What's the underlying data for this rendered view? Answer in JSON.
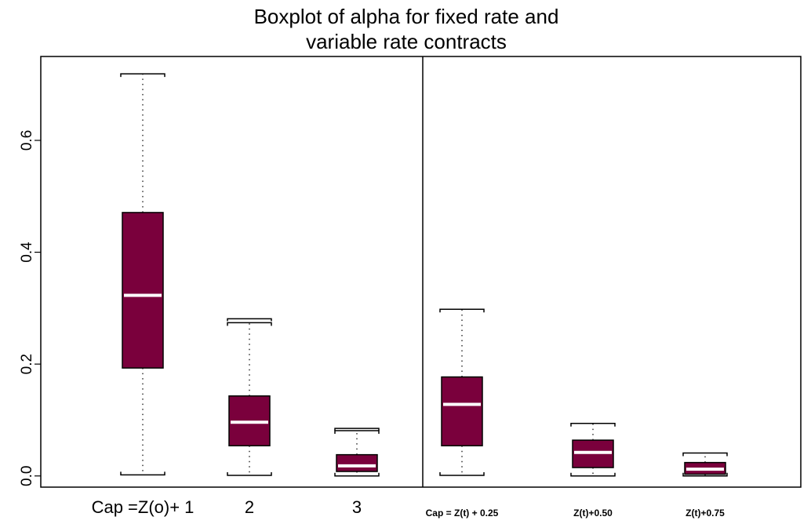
{
  "chart_data": {
    "type": "boxplot",
    "title": [
      "Boxplot of alpha for fixed rate and",
      "variable rate contracts"
    ],
    "xlabel": "",
    "ylabel": "",
    "ylim": [
      -0.02,
      0.75
    ],
    "yticks": [
      "0.0",
      "0.2",
      "0.4",
      "0.6"
    ],
    "ytick_values": [
      0.0,
      0.2,
      0.4,
      0.6
    ],
    "grid": false,
    "panels": [
      "fixed rate",
      "variable rate"
    ],
    "fill_color": "#7a003c",
    "median_color": "#ffffff",
    "boxes": [
      {
        "label": "Cap =Z(o)+ 1",
        "panel": 0,
        "whisker_low": 0.002,
        "q1": 0.193,
        "median": 0.323,
        "q3": 0.471,
        "whisker_high": 0.719,
        "outliers": []
      },
      {
        "label": "2",
        "panel": 0,
        "whisker_low": 0.001,
        "q1": 0.054,
        "median": 0.096,
        "q3": 0.143,
        "whisker_high": 0.274,
        "outliers": [
          0.281
        ]
      },
      {
        "label": "3",
        "panel": 0,
        "whisker_low": 0.0,
        "q1": 0.008,
        "median": 0.018,
        "q3": 0.038,
        "whisker_high": 0.081,
        "outliers": [
          0.085
        ]
      },
      {
        "label": "Cap = Z(t) + 0.25",
        "panel": 1,
        "whisker_low": 0.001,
        "q1": 0.054,
        "median": 0.128,
        "q3": 0.177,
        "whisker_high": 0.298,
        "outliers": []
      },
      {
        "label": "Z(t)+0.50",
        "panel": 1,
        "whisker_low": 0.0,
        "q1": 0.015,
        "median": 0.042,
        "q3": 0.064,
        "whisker_high": 0.094,
        "outliers": []
      },
      {
        "label": "Z(t)+0.75",
        "panel": 1,
        "whisker_low": 0.0,
        "q1": 0.003,
        "median": 0.012,
        "q3": 0.024,
        "whisker_high": 0.041,
        "outliers": []
      }
    ]
  }
}
